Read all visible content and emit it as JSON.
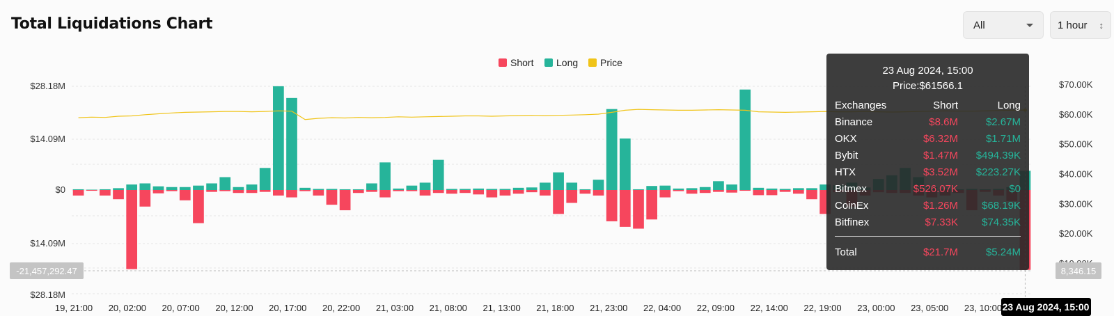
{
  "header": {
    "title": "Total Liquidations Chart"
  },
  "controls": {
    "exchange": "All",
    "interval": "1 hour",
    "caret_icon": "chevron-down-icon",
    "stepper_icon": "up-down-chevron-icon"
  },
  "colors": {
    "short": "#f6465d",
    "long": "#26b49a",
    "price": "#f0c419"
  },
  "chart_data": {
    "type": "bar",
    "title": "",
    "legend": [
      "Short",
      "Long",
      "Price"
    ],
    "legend_position": "top-center",
    "grid": true,
    "y_left_ticks": [
      "$28.18M",
      "$14.09M",
      "$0",
      "$14.09M",
      "$28.18M"
    ],
    "y_left_range": [
      -28.18,
      28.18
    ],
    "y_right_ticks": [
      "$70.00K",
      "$60.00K",
      "$50.00K",
      "$40.00K",
      "$30.00K",
      "$20.00K",
      "$10.00K"
    ],
    "y_right_range": [
      10000,
      70000
    ],
    "x_ticks": [
      "19, 21:00",
      "20, 02:00",
      "20, 07:00",
      "20, 12:00",
      "20, 17:00",
      "20, 22:00",
      "21, 03:00",
      "21, 08:00",
      "21, 13:00",
      "21, 18:00",
      "21, 23:00",
      "22, 04:00",
      "22, 09:00",
      "22, 14:00",
      "22, 19:00",
      "23, 00:00",
      "23, 05:00",
      "23, 10:00"
    ],
    "long": [
      0.2,
      0.1,
      0.2,
      0.5,
      1.5,
      1.8,
      1.0,
      0.8,
      0.8,
      1.2,
      1.8,
      3.5,
      0.8,
      1.5,
      6.0,
      28.2,
      25.0,
      0.6,
      0.3,
      0.3,
      0.2,
      0.2,
      1.8,
      7.5,
      0.4,
      1.2,
      2.0,
      8.2,
      0.3,
      0.3,
      0.4,
      0.3,
      0.3,
      0.6,
      0.7,
      2.0,
      4.8,
      2.0,
      0.2,
      2.8,
      22.0,
      14.0,
      0.2,
      1.1,
      1.2,
      0.4,
      0.5,
      0.8,
      2.4,
      1.5,
      27.3,
      0.6,
      0.4,
      0.3,
      0.5,
      0.5,
      1.5,
      1.3,
      2.0,
      0.7,
      3.0,
      4.0,
      6.0,
      3.5,
      0.8,
      0.3,
      0.2,
      0.3,
      0.2,
      0.3,
      0.8,
      5.24
    ],
    "short": [
      1.5,
      0.2,
      1.5,
      2.5,
      21.5,
      4.5,
      0.9,
      0.3,
      2.8,
      9.0,
      0.5,
      0.3,
      0.8,
      0.8,
      0.5,
      1.5,
      2.0,
      0.3,
      1.5,
      4.0,
      5.5,
      0.8,
      0.5,
      2.0,
      0.3,
      0.3,
      1.5,
      0.8,
      1.0,
      0.8,
      1.2,
      2.0,
      1.5,
      1.0,
      0.6,
      1.5,
      6.5,
      3.5,
      1.0,
      1.5,
      8.5,
      10.0,
      10.5,
      8.0,
      2.0,
      0.3,
      1.0,
      0.8,
      0.5,
      0.7,
      0.2,
      1.4,
      1.4,
      0.5,
      1.0,
      2.5,
      6.5,
      0.6,
      4.5,
      1.5,
      0.6,
      0.8,
      0.8,
      1.5,
      2.0,
      1.5,
      0.8,
      5.5,
      0.5,
      1.5,
      3.0,
      21.7
    ],
    "price": [
      59000,
      59200,
      59100,
      59500,
      59600,
      60000,
      60300,
      60600,
      60800,
      60900,
      61000,
      61100,
      61100,
      61000,
      61100,
      61300,
      61200,
      58400,
      58800,
      59000,
      58900,
      59100,
      59000,
      59100,
      59300,
      59200,
      59300,
      59400,
      59500,
      59600,
      59600,
      59500,
      59600,
      59700,
      59800,
      59700,
      59800,
      59900,
      60000,
      60200,
      60800,
      61500,
      61800,
      61700,
      61600,
      61500,
      61500,
      61600,
      61700,
      61600,
      61500,
      61000,
      60900,
      60800,
      60900,
      61000,
      61100,
      61000,
      61000,
      61100,
      61000,
      60900,
      61000,
      61100,
      61200,
      61300,
      61200,
      61200,
      61300,
      61400,
      61500,
      61566.1
    ],
    "crosshair": {
      "left_value": "-21,457,292.47",
      "right_value": "8,346.15",
      "x_label": "23 Aug 2024, 15:00"
    }
  },
  "tooltip": {
    "date": "23 Aug 2024, 15:00",
    "price": "Price:$61566.1",
    "headers": [
      "Exchanges",
      "Short",
      "Long"
    ],
    "rows": [
      {
        "exchange": "Binance",
        "short": "$8.6M",
        "long": "$2.67M"
      },
      {
        "exchange": "OKX",
        "short": "$6.32M",
        "long": "$1.71M"
      },
      {
        "exchange": "Bybit",
        "short": "$1.47M",
        "long": "$494.39K"
      },
      {
        "exchange": "HTX",
        "short": "$3.52M",
        "long": "$223.27K"
      },
      {
        "exchange": "Bitmex",
        "short": "$526.07K",
        "long": "$0"
      },
      {
        "exchange": "CoinEx",
        "short": "$1.26M",
        "long": "$68.19K"
      },
      {
        "exchange": "Bitfinex",
        "short": "$7.33K",
        "long": "$74.35K"
      }
    ],
    "total": {
      "label": "Total",
      "short": "$21.7M",
      "long": "$5.24M"
    }
  }
}
